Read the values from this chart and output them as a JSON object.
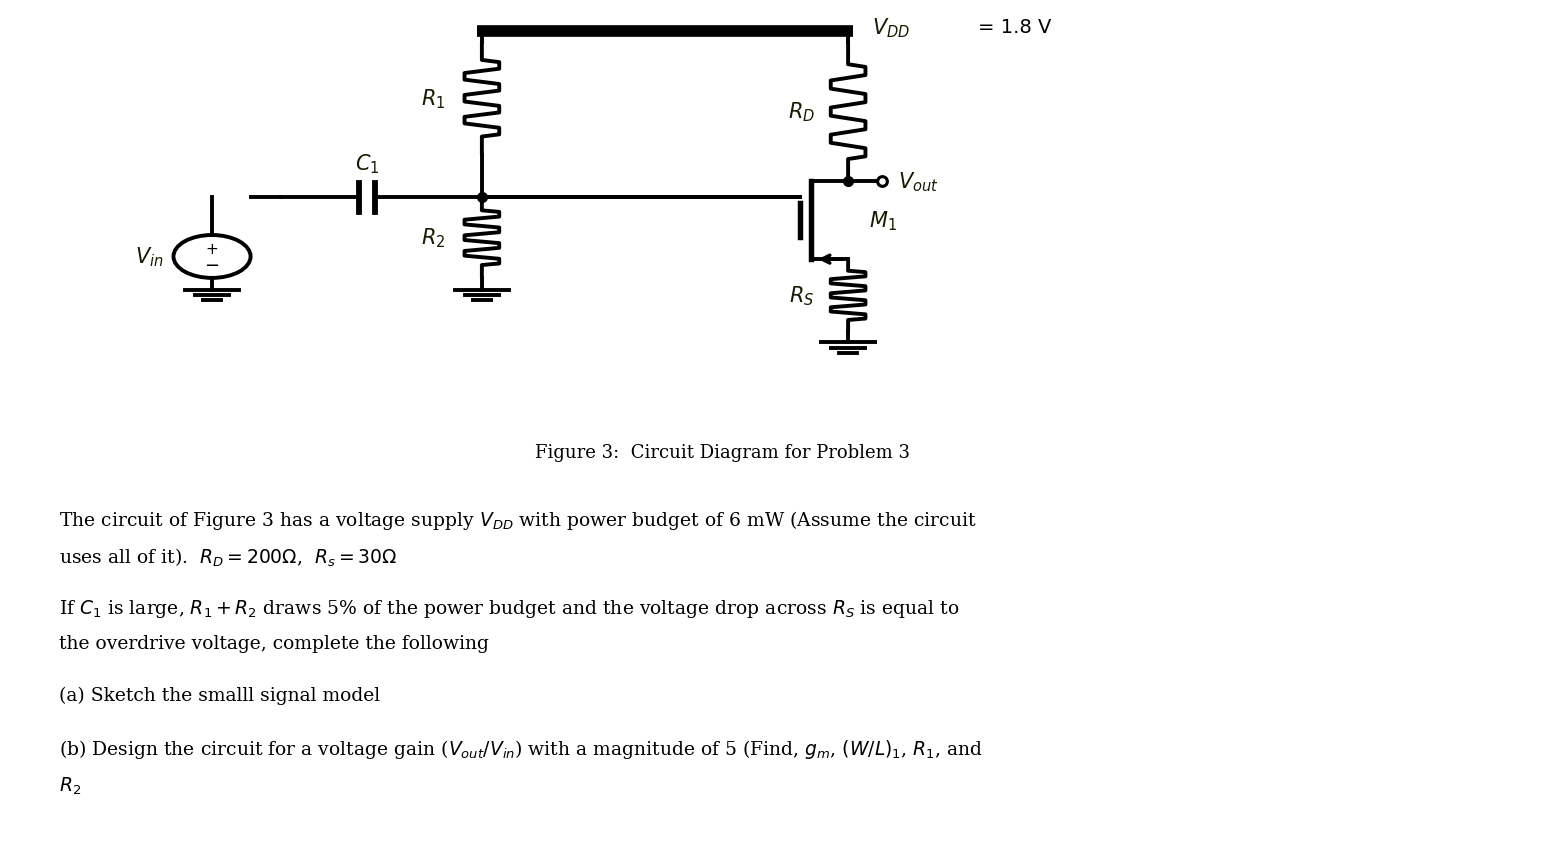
{
  "bg_color": "#ffffff",
  "fig_width": 15.42,
  "fig_height": 8.62,
  "dpi": 100,
  "figure_caption": "Figure 3:  Circuit Diagram for Problem 3",
  "caption_fontsize": 13,
  "line_color": "#000000",
  "label_color": "#1a1a00",
  "lw": 2.8,
  "text_lines": [
    "The circuit of Figure 3 has a voltage supply $V_{DD}$ with power budget of 6 mW (Assume the circuit",
    "uses all of it).  $R_D = 200\\Omega$,  $R_s = 30\\Omega$",
    "",
    "If $C_1$ is large, $R_1 + R_2$ draws 5% of the power budget and the voltage drop across $R_S$ is equal to",
    "the overdrive voltage, complete the following",
    "",
    "(a) Sketch the smalll signal model",
    "",
    "(b) Design the circuit for a voltage gain ($V_{out}/V_{in}$) with a magnitude of 5 (Find, $g_m$, $(W/L)_1$, $R_1$, and",
    "$R_2$"
  ]
}
